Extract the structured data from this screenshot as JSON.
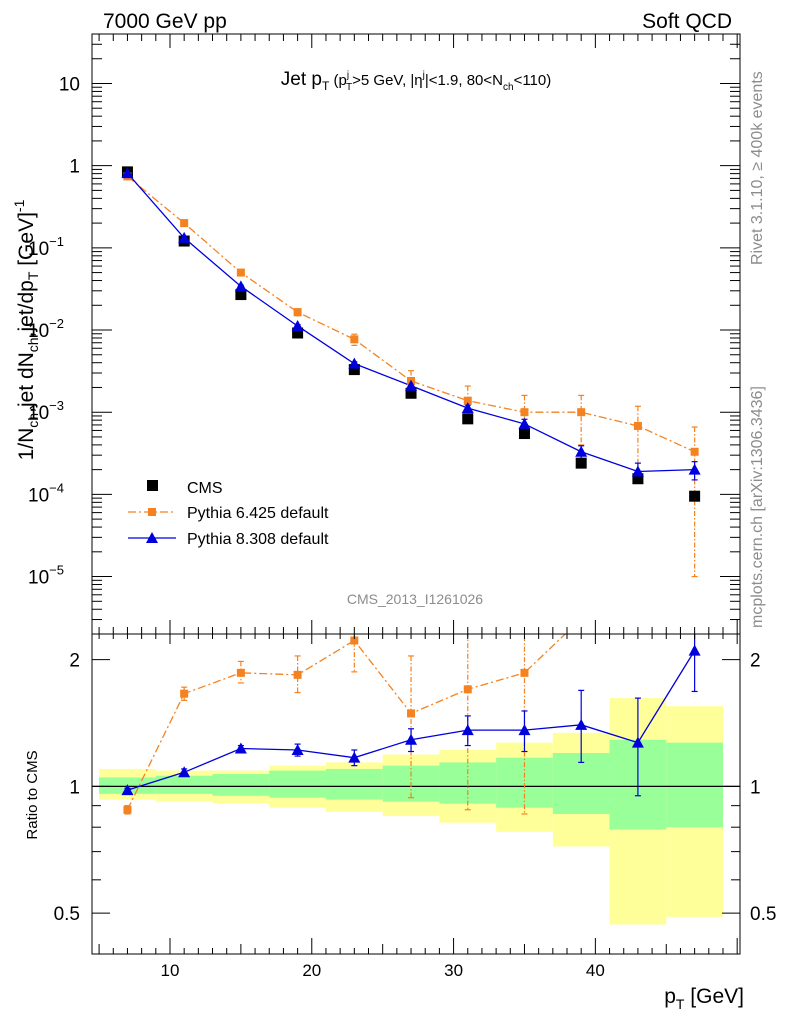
{
  "header": {
    "left": "7000 GeV pp",
    "right": "Soft QCD"
  },
  "side_labels": {
    "rivet": "Rivet 3.1.10, ≥ 400k events",
    "mcplots": "mcplots.cern.ch [arXiv:1306.3436]"
  },
  "watermark": "CMS_2013_I1261026",
  "chart_data": [
    {
      "type": "scatter",
      "title": "Jet p_T (p_T^j>5 GeV, |η^j|<1.9, 80<N_ch<110)",
      "ylabel": "1/N_ch,jet dN_ch,jet/dp_T [GeV]^-1",
      "xlabel": "p_T [GeV]",
      "xlim": [
        4.5,
        50.2
      ],
      "ylim": [
        2e-06,
        40
      ],
      "yscale": "log",
      "y_ticks": [
        "10^-5",
        "10^-4",
        "10^-3",
        "10^-2",
        "10^-1",
        "1",
        "10"
      ],
      "legend_position": "bottom-left",
      "x": [
        7,
        11,
        15,
        19,
        23,
        27,
        31,
        35,
        39,
        43,
        47
      ],
      "series": [
        {
          "name": "CMS",
          "color": "#000000",
          "marker": "square",
          "values": [
            0.84,
            0.121,
            0.027,
            0.0092,
            0.0033,
            0.0017,
            0.00083,
            0.00055,
            0.00024,
            0.000155,
            9.5e-05
          ]
        },
        {
          "name": "Pythia 6.425 default",
          "color": "#f58220",
          "marker": "square",
          "line": "dashdot",
          "values": [
            0.74,
            0.2,
            0.05,
            0.0165,
            0.0077,
            0.0024,
            0.00138,
            0.001,
            0.001,
            0.00068,
            0.00033
          ],
          "errors_low": [
            0.03,
            0.008,
            0.0025,
            0.0016,
            0.0012,
            0.0006,
            0.00055,
            0.00045,
            0.0006,
            0.0005,
            0.00032
          ],
          "errors_high": [
            0.03,
            0.008,
            0.0025,
            0.0016,
            0.0012,
            0.0008,
            0.0007,
            0.0006,
            0.0006,
            0.0005,
            0.00033
          ]
        },
        {
          "name": "Pythia 8.308 default",
          "color": "#0000dd",
          "marker": "triangle",
          "line": "solid",
          "values": [
            0.81,
            0.132,
            0.034,
            0.0112,
            0.0039,
            0.0021,
            0.00112,
            0.00072,
            0.00033,
            0.00019,
            0.0002
          ],
          "errors_low": [
            0.02,
            0.004,
            0.001,
            0.0004,
            0.0002,
            0.00015,
            0.0001,
            0.0001,
            6e-05,
            5e-05,
            5e-05
          ],
          "errors_high": [
            0.02,
            0.004,
            0.001,
            0.0004,
            0.0002,
            0.00015,
            0.0001,
            0.0001,
            6e-05,
            5e-05,
            5e-05
          ]
        }
      ]
    },
    {
      "type": "scatter",
      "ylabel": "Ratio to CMS",
      "xlabel": "p_T [GeV]",
      "xlim": [
        4.5,
        50.2
      ],
      "ylim": [
        0.4,
        2.3
      ],
      "yscale": "log",
      "y_ticks": [
        0.5,
        1,
        2
      ],
      "x_ticks": [
        10,
        20,
        30,
        40
      ],
      "x": [
        7,
        11,
        15,
        19,
        23,
        27,
        31,
        35,
        39,
        43,
        47
      ],
      "reference_line": 1,
      "bands": {
        "bins": [
          [
            5,
            9
          ],
          [
            9,
            13
          ],
          [
            13,
            17
          ],
          [
            17,
            21
          ],
          [
            21,
            25
          ],
          [
            25,
            29
          ],
          [
            29,
            33
          ],
          [
            33,
            37
          ],
          [
            37,
            41
          ],
          [
            41,
            45
          ],
          [
            45,
            49
          ]
        ],
        "yellow": {
          "color": "#ffff99",
          "low": [
            0.93,
            0.92,
            0.91,
            0.89,
            0.87,
            0.85,
            0.82,
            0.78,
            0.72,
            0.47,
            0.49
          ],
          "high": [
            1.1,
            1.09,
            1.09,
            1.12,
            1.14,
            1.19,
            1.22,
            1.27,
            1.34,
            1.62,
            1.55
          ]
        },
        "green": {
          "color": "#99ff99",
          "low": [
            0.96,
            0.96,
            0.95,
            0.94,
            0.93,
            0.92,
            0.91,
            0.89,
            0.86,
            0.79,
            0.8
          ],
          "high": [
            1.05,
            1.06,
            1.07,
            1.09,
            1.1,
            1.12,
            1.14,
            1.17,
            1.2,
            1.29,
            1.27
          ]
        }
      },
      "series": [
        {
          "name": "Pythia 6.425 default",
          "color": "#f58220",
          "values": [
            0.88,
            1.66,
            1.86,
            1.84,
            2.22,
            1.49,
            1.7,
            1.86,
            2.5,
            2.5,
            2.5
          ],
          "errors_low": [
            0.02,
            0.06,
            0.1,
            0.17,
            0.35,
            0.55,
            0.82,
            1.0,
            0,
            0,
            0
          ],
          "errors_high": [
            0.02,
            0.06,
            0.12,
            0.2,
            0.4,
            0.55,
            0.9,
            1.0,
            0,
            0,
            0
          ]
        },
        {
          "name": "Pythia 8.308 default",
          "color": "#0000dd",
          "values": [
            0.98,
            1.08,
            1.23,
            1.22,
            1.17,
            1.29,
            1.36,
            1.36,
            1.4,
            1.27,
            2.1
          ],
          "errors_low": [
            0.01,
            0.02,
            0.02,
            0.04,
            0.05,
            0.08,
            0.11,
            0.15,
            0.26,
            0.32,
            0.42
          ],
          "errors_high": [
            0.01,
            0.02,
            0.02,
            0.04,
            0.05,
            0.08,
            0.11,
            0.15,
            0.29,
            0.35,
            0.45
          ]
        }
      ]
    }
  ]
}
